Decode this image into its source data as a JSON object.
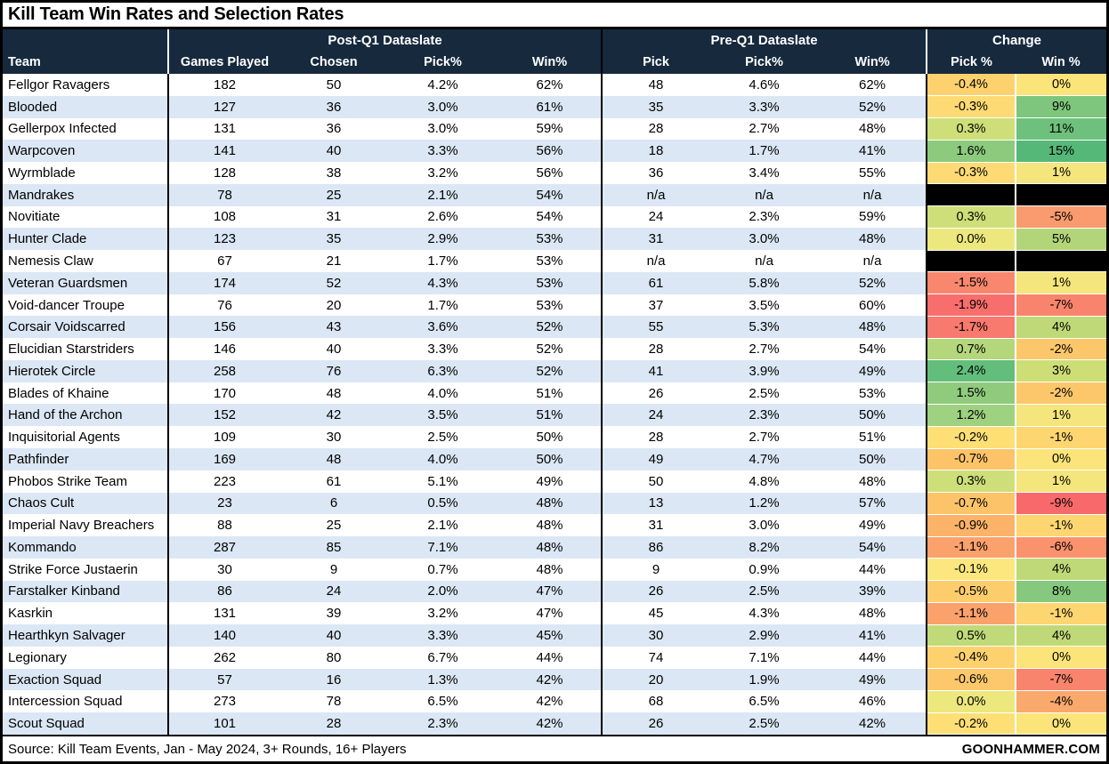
{
  "title": "Kill Team Win Rates and Selection Rates",
  "footer": {
    "source": "Source: Kill Team Events, Jan - May 2024, 3+ Rounds, 16+ Players",
    "brand": "GOONHAMMER.COM"
  },
  "colors": {
    "header_bg": "#16293d",
    "row_stripe": "#dbe7f4",
    "na_cell": "#000000"
  },
  "chart_data": {
    "type": "table",
    "title": "Kill Team Win Rates and Selection Rates",
    "column_groups": [
      {
        "label": "",
        "span": 1
      },
      {
        "label": "Post-Q1 Dataslate",
        "span": 4
      },
      {
        "label": "Pre-Q1 Dataslate",
        "span": 3
      },
      {
        "label": "Change",
        "span": 2
      }
    ],
    "columns": [
      "Team",
      "Games Played",
      "Chosen",
      "Pick%",
      "Win%",
      "Pick",
      "Pick%",
      "Win%",
      "Pick %",
      "Win %"
    ],
    "rows": [
      {
        "team": "Fellgor Ravagers",
        "post": [
          "182",
          "50",
          "4.2%",
          "62%"
        ],
        "pre": [
          "48",
          "4.6%",
          "62%"
        ],
        "change": [
          {
            "v": "-0.4%",
            "c": "#fdd26e"
          },
          {
            "v": "0%",
            "c": "#fbe479"
          }
        ]
      },
      {
        "team": "Blooded",
        "post": [
          "127",
          "36",
          "3.0%",
          "61%"
        ],
        "pre": [
          "35",
          "3.3%",
          "52%"
        ],
        "change": [
          {
            "v": "-0.3%",
            "c": "#fdda73"
          },
          {
            "v": "9%",
            "c": "#7ec67d"
          }
        ]
      },
      {
        "team": "Gellerpox Infected",
        "post": [
          "131",
          "36",
          "3.0%",
          "59%"
        ],
        "pre": [
          "28",
          "2.7%",
          "48%"
        ],
        "change": [
          {
            "v": "0.3%",
            "c": "#cede78"
          },
          {
            "v": "11%",
            "c": "#6ec17c"
          }
        ]
      },
      {
        "team": "Warpcoven",
        "post": [
          "141",
          "40",
          "3.3%",
          "56%"
        ],
        "pre": [
          "18",
          "1.7%",
          "41%"
        ],
        "change": [
          {
            "v": "1.6%",
            "c": "#8cca7d"
          },
          {
            "v": "15%",
            "c": "#55b878"
          }
        ]
      },
      {
        "team": "Wyrmblade",
        "post": [
          "128",
          "38",
          "3.2%",
          "56%"
        ],
        "pre": [
          "36",
          "3.4%",
          "55%"
        ],
        "change": [
          {
            "v": "-0.3%",
            "c": "#fdda73"
          },
          {
            "v": "1%",
            "c": "#f4e57c"
          }
        ]
      },
      {
        "team": "Mandrakes",
        "post": [
          "78",
          "25",
          "2.1%",
          "54%"
        ],
        "pre": [
          "n/a",
          "n/a",
          "n/a"
        ],
        "change": [
          {
            "v": null,
            "c": "#000000"
          },
          {
            "v": null,
            "c": "#000000"
          }
        ]
      },
      {
        "team": "Novitiate",
        "post": [
          "108",
          "31",
          "2.6%",
          "54%"
        ],
        "pre": [
          "24",
          "2.3%",
          "59%"
        ],
        "change": [
          {
            "v": "0.3%",
            "c": "#cede78"
          },
          {
            "v": "-5%",
            "c": "#f99b6e"
          }
        ]
      },
      {
        "team": "Hunter Clade",
        "post": [
          "123",
          "35",
          "2.9%",
          "53%"
        ],
        "pre": [
          "31",
          "3.0%",
          "48%"
        ],
        "change": [
          {
            "v": "0.0%",
            "c": "#ece87e"
          },
          {
            "v": "5%",
            "c": "#b3d57a"
          }
        ]
      },
      {
        "team": "Nemesis Claw",
        "post": [
          "67",
          "21",
          "1.7%",
          "53%"
        ],
        "pre": [
          "n/a",
          "n/a",
          "n/a"
        ],
        "change": [
          {
            "v": null,
            "c": "#000000"
          },
          {
            "v": null,
            "c": "#000000"
          }
        ]
      },
      {
        "team": "Veteran Guardsmen",
        "post": [
          "174",
          "52",
          "4.3%",
          "53%"
        ],
        "pre": [
          "61",
          "5.8%",
          "52%"
        ],
        "change": [
          {
            "v": "-1.5%",
            "c": "#f9876e"
          },
          {
            "v": "1%",
            "c": "#f4e57c"
          }
        ]
      },
      {
        "team": "Void-dancer Troupe",
        "post": [
          "76",
          "20",
          "1.7%",
          "53%"
        ],
        "pre": [
          "37",
          "3.5%",
          "60%"
        ],
        "change": [
          {
            "v": "-1.9%",
            "c": "#f86e6c"
          },
          {
            "v": "-7%",
            "c": "#f8846d"
          }
        ]
      },
      {
        "team": "Corsair Voidscarred",
        "post": [
          "156",
          "43",
          "3.6%",
          "52%"
        ],
        "pre": [
          "55",
          "5.3%",
          "48%"
        ],
        "change": [
          {
            "v": "-1.7%",
            "c": "#f8796d"
          },
          {
            "v": "4%",
            "c": "#c0d978"
          }
        ]
      },
      {
        "team": "Elucidian Starstriders",
        "post": [
          "146",
          "40",
          "3.3%",
          "52%"
        ],
        "pre": [
          "28",
          "2.7%",
          "54%"
        ],
        "change": [
          {
            "v": "0.7%",
            "c": "#b5d77b"
          },
          {
            "v": "-2%",
            "c": "#fcc76b"
          }
        ]
      },
      {
        "team": "Hierotek Circle",
        "post": [
          "258",
          "76",
          "6.3%",
          "52%"
        ],
        "pre": [
          "41",
          "3.9%",
          "49%"
        ],
        "change": [
          {
            "v": "2.4%",
            "c": "#63be7b"
          },
          {
            "v": "3%",
            "c": "#cdde77"
          }
        ]
      },
      {
        "team": "Blades of Khaine",
        "post": [
          "170",
          "48",
          "4.0%",
          "51%"
        ],
        "pre": [
          "26",
          "2.5%",
          "53%"
        ],
        "change": [
          {
            "v": "1.5%",
            "c": "#90cb7d"
          },
          {
            "v": "-2%",
            "c": "#fcc76b"
          }
        ]
      },
      {
        "team": "Hand of the Archon",
        "post": [
          "152",
          "42",
          "3.5%",
          "51%"
        ],
        "pre": [
          "24",
          "2.3%",
          "50%"
        ],
        "change": [
          {
            "v": "1.2%",
            "c": "#9ed180"
          },
          {
            "v": "1%",
            "c": "#f4e57c"
          }
        ]
      },
      {
        "team": "Inquisitorial Agents",
        "post": [
          "109",
          "30",
          "2.5%",
          "50%"
        ],
        "pre": [
          "28",
          "2.7%",
          "51%"
        ],
        "change": [
          {
            "v": "-0.2%",
            "c": "#fddf76"
          },
          {
            "v": "-1%",
            "c": "#fdd671"
          }
        ]
      },
      {
        "team": "Pathfinder",
        "post": [
          "169",
          "48",
          "4.0%",
          "50%"
        ],
        "pre": [
          "49",
          "4.7%",
          "50%"
        ],
        "change": [
          {
            "v": "-0.7%",
            "c": "#fcc369"
          },
          {
            "v": "0%",
            "c": "#fbe479"
          }
        ]
      },
      {
        "team": "Phobos Strike Team",
        "post": [
          "223",
          "61",
          "5.1%",
          "49%"
        ],
        "pre": [
          "50",
          "4.8%",
          "48%"
        ],
        "change": [
          {
            "v": "0.3%",
            "c": "#cede78"
          },
          {
            "v": "1%",
            "c": "#f4e57c"
          }
        ]
      },
      {
        "team": "Chaos Cult",
        "post": [
          "23",
          "6",
          "0.5%",
          "48%"
        ],
        "pre": [
          "13",
          "1.2%",
          "57%"
        ],
        "change": [
          {
            "v": "-0.7%",
            "c": "#fcc369"
          },
          {
            "v": "-9%",
            "c": "#f8696b"
          }
        ]
      },
      {
        "team": "Imperial Navy Breachers",
        "post": [
          "88",
          "25",
          "2.1%",
          "48%"
        ],
        "pre": [
          "31",
          "3.0%",
          "49%"
        ],
        "change": [
          {
            "v": "-0.9%",
            "c": "#fbb269"
          },
          {
            "v": "-1%",
            "c": "#fdd671"
          }
        ]
      },
      {
        "team": "Kommando",
        "post": [
          "287",
          "85",
          "7.1%",
          "48%"
        ],
        "pre": [
          "86",
          "8.2%",
          "54%"
        ],
        "change": [
          {
            "v": "-1.1%",
            "c": "#faa16c"
          },
          {
            "v": "-6%",
            "c": "#f9926d"
          }
        ]
      },
      {
        "team": "Strike Force Justaerin",
        "post": [
          "30",
          "9",
          "0.7%",
          "48%"
        ],
        "pre": [
          "9",
          "0.9%",
          "44%"
        ],
        "change": [
          {
            "v": "-0.1%",
            "c": "#fbe77d"
          },
          {
            "v": "4%",
            "c": "#c0d978"
          }
        ]
      },
      {
        "team": "Farstalker Kinband",
        "post": [
          "86",
          "24",
          "2.0%",
          "47%"
        ],
        "pre": [
          "26",
          "2.5%",
          "39%"
        ],
        "change": [
          {
            "v": "-0.5%",
            "c": "#fdcd6c"
          },
          {
            "v": "8%",
            "c": "#86c87d"
          }
        ]
      },
      {
        "team": "Kasrkin",
        "post": [
          "131",
          "39",
          "3.2%",
          "47%"
        ],
        "pre": [
          "45",
          "4.3%",
          "48%"
        ],
        "change": [
          {
            "v": "-1.1%",
            "c": "#faa16c"
          },
          {
            "v": "-1%",
            "c": "#fdd671"
          }
        ]
      },
      {
        "team": "Hearthkyn Salvager",
        "post": [
          "140",
          "40",
          "3.3%",
          "45%"
        ],
        "pre": [
          "30",
          "2.9%",
          "41%"
        ],
        "change": [
          {
            "v": "0.5%",
            "c": "#c0da79"
          },
          {
            "v": "4%",
            "c": "#c0d978"
          }
        ]
      },
      {
        "team": "Legionary",
        "post": [
          "262",
          "80",
          "6.7%",
          "44%"
        ],
        "pre": [
          "74",
          "7.1%",
          "44%"
        ],
        "change": [
          {
            "v": "-0.4%",
            "c": "#fdd26e"
          },
          {
            "v": "0%",
            "c": "#fbe479"
          }
        ]
      },
      {
        "team": "Exaction Squad",
        "post": [
          "57",
          "16",
          "1.3%",
          "42%"
        ],
        "pre": [
          "20",
          "1.9%",
          "49%"
        ],
        "change": [
          {
            "v": "-0.6%",
            "c": "#fcc86b"
          },
          {
            "v": "-7%",
            "c": "#f8846d"
          }
        ]
      },
      {
        "team": "Intercession Squad",
        "post": [
          "273",
          "78",
          "6.5%",
          "42%"
        ],
        "pre": [
          "68",
          "6.5%",
          "46%"
        ],
        "change": [
          {
            "v": "0.0%",
            "c": "#ece87e"
          },
          {
            "v": "-4%",
            "c": "#faa96d"
          }
        ]
      },
      {
        "team": "Scout Squad",
        "post": [
          "101",
          "28",
          "2.3%",
          "42%"
        ],
        "pre": [
          "26",
          "2.5%",
          "42%"
        ],
        "change": [
          {
            "v": "-0.2%",
            "c": "#fddf76"
          },
          {
            "v": "0%",
            "c": "#fbe479"
          }
        ]
      }
    ]
  }
}
